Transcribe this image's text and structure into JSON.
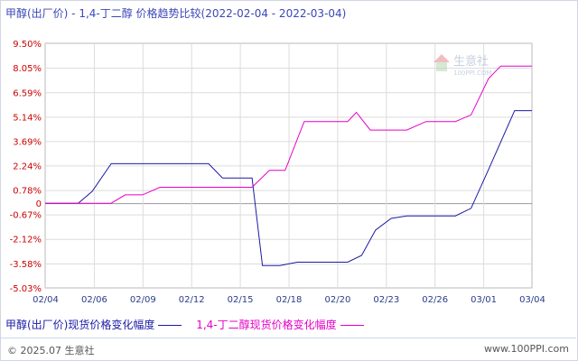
{
  "title": "甲醇(出厂价) - 1,4-丁二醇 价格趋势比较(2022-02-04 - 2022-03-04)",
  "watermark": {
    "brand": "生意社",
    "site": "100PPI.COM"
  },
  "footer": {
    "copyright": "© 2025.07 生意社",
    "site": "www.100PPI.com"
  },
  "chart_data": {
    "type": "line",
    "title": "甲醇(出厂价) - 1,4-丁二醇 价格趋势比较(2022-02-04 - 2022-03-04)",
    "xlabel": "",
    "ylabel": "",
    "ylim": [
      -5.03,
      9.5
    ],
    "yticks": [
      "9.50%",
      "8.05%",
      "6.59%",
      "5.14%",
      "3.69%",
      "2.24%",
      "0.78%",
      "0",
      "-0.67%",
      "-2.12%",
      "-3.58%",
      "-5.03%"
    ],
    "ytick_values": [
      9.5,
      8.05,
      6.59,
      5.14,
      3.69,
      2.24,
      0.78,
      0,
      -0.67,
      -2.12,
      -3.58,
      -5.03
    ],
    "xticks": [
      "02/04",
      "02/06",
      "02/09",
      "02/12",
      "02/15",
      "02/18",
      "02/20",
      "02/23",
      "02/26",
      "03/01",
      "03/04"
    ],
    "grid": true,
    "legend_position": "bottom-left",
    "series": [
      {
        "name": "甲醇(出厂价)现货价格变化幅度",
        "color": "#1a1aa6",
        "points": [
          [
            0,
            0
          ],
          [
            1.9,
            0
          ],
          [
            2.7,
            0.7
          ],
          [
            3.8,
            2.35
          ],
          [
            9.4,
            2.35
          ],
          [
            10.2,
            1.5
          ],
          [
            11.1,
            1.5
          ],
          [
            11.9,
            1.5
          ],
          [
            12.5,
            -3.7
          ],
          [
            13.5,
            -3.7
          ],
          [
            14.5,
            -3.5
          ],
          [
            16,
            -3.5
          ],
          [
            17.4,
            -3.5
          ],
          [
            18.2,
            -3.1
          ],
          [
            19,
            -1.6
          ],
          [
            19.9,
            -0.9
          ],
          [
            20.8,
            -0.75
          ],
          [
            22.8,
            -0.75
          ],
          [
            23.6,
            -0.75
          ],
          [
            24.5,
            -0.3
          ],
          [
            25.5,
            2.0
          ],
          [
            27,
            5.5
          ],
          [
            28,
            5.5
          ]
        ]
      },
      {
        "name": "1,4-丁二醇现货价格变化幅度",
        "color": "#e600c8",
        "points": [
          [
            0,
            0
          ],
          [
            3.8,
            0
          ],
          [
            4.6,
            0.5
          ],
          [
            5.6,
            0.5
          ],
          [
            6.6,
            0.95
          ],
          [
            11.1,
            0.95
          ],
          [
            11.9,
            0.95
          ],
          [
            12.9,
            1.95
          ],
          [
            13.8,
            1.95
          ],
          [
            14.9,
            4.85
          ],
          [
            16,
            4.85
          ],
          [
            17.4,
            4.85
          ],
          [
            17.9,
            5.4
          ],
          [
            18.7,
            4.35
          ],
          [
            20.8,
            4.35
          ],
          [
            21.9,
            4.85
          ],
          [
            23.6,
            4.85
          ],
          [
            24.5,
            5.25
          ],
          [
            25.5,
            7.4
          ],
          [
            26.2,
            8.15
          ],
          [
            28,
            8.15
          ]
        ]
      }
    ]
  }
}
